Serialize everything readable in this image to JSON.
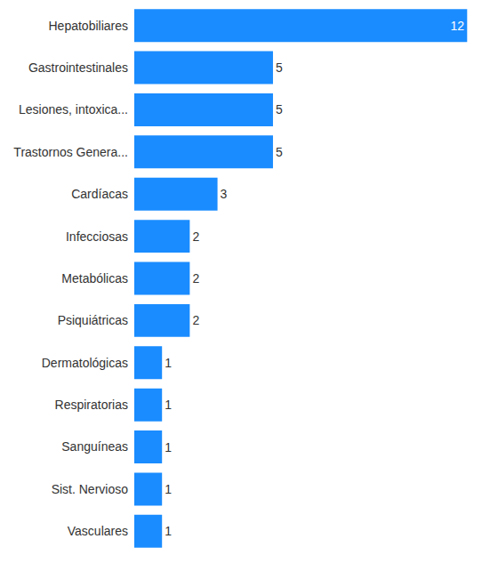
{
  "chart_data": {
    "type": "bar",
    "orientation": "horizontal",
    "categories": [
      "Hepatobiliares",
      "Gastrointestinales",
      "Lesiones, intoxica...",
      "Trastornos Genera...",
      "Cardíacas",
      "Infecciosas",
      "Metabólicas",
      "Psiquiátricas",
      "Dermatológicas",
      "Respiratorias",
      "Sanguíneas",
      "Sist. Nervioso",
      "Vasculares"
    ],
    "values": [
      12,
      5,
      5,
      5,
      3,
      2,
      2,
      2,
      1,
      1,
      1,
      1,
      1
    ],
    "color": "#1a8cff",
    "data_labels": true,
    "tick_labels": "y",
    "grid": false
  }
}
